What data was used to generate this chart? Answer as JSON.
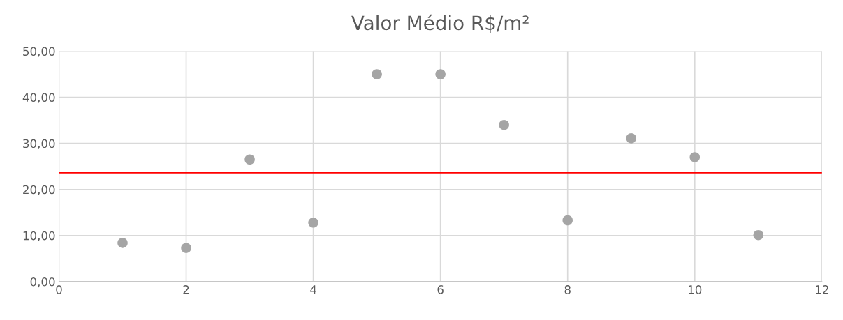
{
  "chart_data": {
    "type": "scatter",
    "title": "Valor Médio R$/m²",
    "x": [
      1,
      2,
      3,
      4,
      5,
      6,
      7,
      8,
      9,
      10,
      11
    ],
    "values": [
      8.4,
      7.3,
      26.5,
      12.8,
      45.0,
      45.0,
      34.0,
      13.3,
      31.1,
      27.0,
      10.1
    ],
    "color": "#a5a5a5",
    "marker": "circle",
    "xlim": [
      0,
      12
    ],
    "xticks": [
      0,
      2,
      4,
      6,
      8,
      10,
      12
    ],
    "ylim": [
      0,
      50
    ],
    "yticks": [
      {
        "value": 0,
        "label": "0,00"
      },
      {
        "value": 10,
        "label": "10,00"
      },
      {
        "value": 20,
        "label": "20,00"
      },
      {
        "value": 30,
        "label": "30,00"
      },
      {
        "value": 40,
        "label": "40,00"
      },
      {
        "value": 50,
        "label": "50,00"
      }
    ],
    "ref_lines": [
      {
        "axis": "y",
        "value": 23.6,
        "color": "#ff0000"
      }
    ],
    "grid": true
  }
}
